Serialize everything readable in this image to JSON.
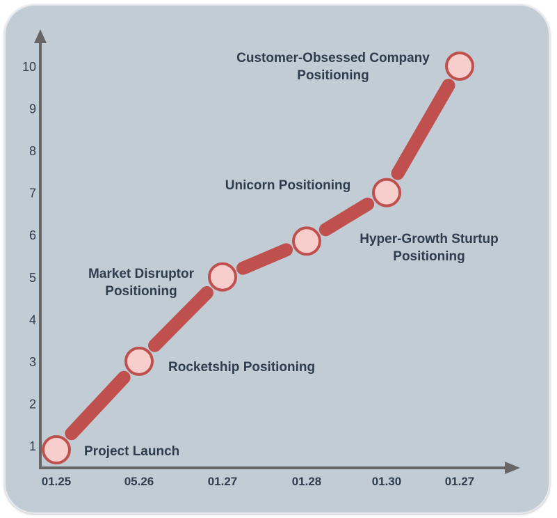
{
  "chart_data": {
    "type": "line",
    "x": [
      "01.25",
      "05.26",
      "01.27",
      "01.28",
      "01.30",
      "01.27"
    ],
    "values": [
      0.9,
      3.0,
      5.0,
      5.85,
      7.0,
      10.0
    ],
    "ylim": [
      0,
      10
    ],
    "yticks": [
      1,
      2,
      3,
      4,
      5,
      6,
      7,
      8,
      9,
      10
    ],
    "annotations": [
      [
        "Project Launch"
      ],
      [
        "Rocketship Positioning"
      ],
      [
        "Market Disruptor",
        "Positioning"
      ],
      [
        "Unicorn Positioning"
      ],
      [
        "Hyper-Growth Sturtup",
        "Positioning"
      ],
      [
        "Customer-Obsessed Company",
        "Positioning"
      ]
    ],
    "colors": {
      "background": "#c2ccd4",
      "axis": "#666666",
      "line": "#c0504d",
      "marker_fill": "#f8cecc",
      "marker_stroke": "#c0504d",
      "text": "#2e3d4d"
    }
  }
}
